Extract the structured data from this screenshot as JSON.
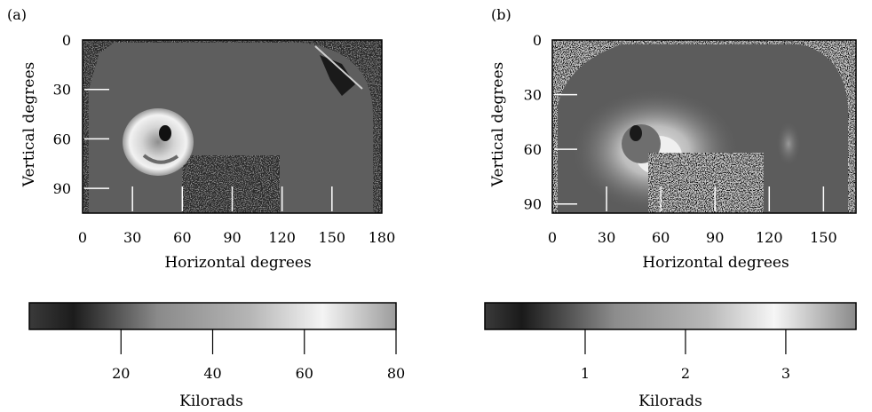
{
  "chart_data": [
    {
      "type": "heatmap",
      "panel_label": "(a)",
      "xlabel": "Horizontal degrees",
      "ylabel": "Vertical degrees",
      "xlim": [
        0,
        180
      ],
      "ylim": [
        0,
        105
      ],
      "x_ticks": [
        0,
        30,
        60,
        90,
        120,
        150,
        180
      ],
      "y_ticks": [
        0,
        30,
        60,
        90
      ],
      "colorbar": {
        "label": "Kilorads",
        "range": [
          0,
          80
        ],
        "ticks": [
          20,
          40,
          60,
          80
        ]
      }
    },
    {
      "type": "heatmap",
      "panel_label": "(b)",
      "xlabel": "Horizontal degrees",
      "ylabel": "Vertical degrees",
      "xlim": [
        0,
        168
      ],
      "ylim": [
        0,
        95
      ],
      "x_ticks": [
        0,
        30,
        60,
        90,
        120,
        150
      ],
      "y_ticks": [
        0,
        30,
        60,
        90
      ],
      "colorbar": {
        "label": "Kilorads",
        "range": [
          0,
          3.7
        ],
        "ticks": [
          1,
          2,
          3
        ]
      }
    }
  ]
}
